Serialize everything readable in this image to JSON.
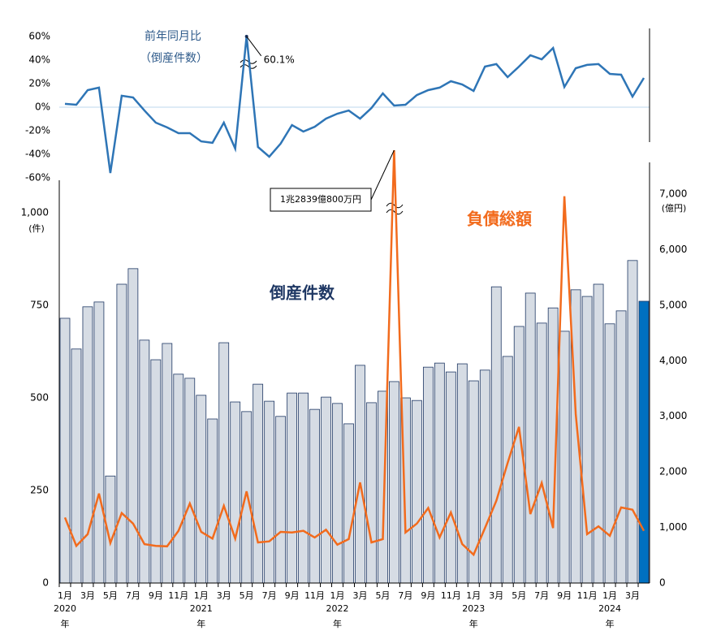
{
  "chart_data": [
    {
      "type": "line",
      "title": "前年同月比",
      "subtitle": "（倒産件数）",
      "color": "#2e75b6",
      "ylim": [
        -60,
        60
      ],
      "yticks": [
        {
          "value": -60,
          "label": "-60%"
        },
        {
          "value": -40,
          "label": "-40%"
        },
        {
          "value": -20,
          "label": "-20%"
        },
        {
          "value": 0,
          "label": "0%"
        },
        {
          "value": 20,
          "label": "20%"
        },
        {
          "value": 40,
          "label": "40%"
        },
        {
          "value": 60,
          "label": "60%"
        }
      ],
      "values": [
        2.8,
        2.1,
        14.5,
        16.6,
        -55.9,
        9.7,
        8.3,
        -2.8,
        -13.1,
        -17.2,
        -22.1,
        -22.1,
        -29.0,
        -30.3,
        -13.1,
        -35.2,
        60.1,
        -33.8,
        -42.1,
        -31.0,
        -15.2,
        -20.7,
        -16.6,
        -9.7,
        -5.5,
        -2.8,
        -9.7,
        -0.7,
        11.7,
        1.4,
        2.1,
        10.3,
        14.5,
        16.6,
        22.1,
        19.3,
        13.8,
        34.5,
        36.6,
        25.5,
        34.5,
        44.1,
        40.7,
        50.3,
        17.2,
        33.1,
        35.9,
        36.6,
        28.3,
        27.6,
        9.0,
        24.8
      ],
      "annotation": {
        "index": 16,
        "text": "60.1%"
      }
    },
    {
      "type": "bar-line",
      "categories": [
        "1月",
        null,
        "3月",
        null,
        "5月",
        null,
        "7月",
        null,
        "9月",
        null,
        "11月",
        null,
        "1月",
        null,
        "3月",
        null,
        "5月",
        null,
        "7月",
        null,
        "9月",
        null,
        "11月",
        null,
        "1月",
        null,
        "3月",
        null,
        "5月",
        null,
        "7月",
        null,
        "9月",
        null,
        "11月",
        null,
        "1月",
        null,
        "3月",
        null,
        "5月",
        null,
        "7月",
        null,
        "9月",
        null,
        "11月",
        null,
        "1月",
        null,
        "3月",
        null
      ],
      "years": [
        "2020",
        null,
        null,
        null,
        null,
        null,
        null,
        null,
        null,
        null,
        null,
        null,
        "2021",
        null,
        null,
        null,
        null,
        null,
        null,
        null,
        null,
        null,
        null,
        null,
        "2022",
        null,
        null,
        null,
        null,
        null,
        null,
        null,
        null,
        null,
        null,
        null,
        "2023",
        null,
        null,
        null,
        null,
        null,
        null,
        null,
        null,
        null,
        null,
        null,
        "2024",
        null,
        null,
        null
      ],
      "year_suffix": "年",
      "ylim": [
        0,
        1000
      ],
      "yticks": [
        0,
        250,
        500,
        750,
        {
          "value": 1000,
          "label": "1,000"
        }
      ],
      "y_unit": "(件)",
      "y2lim": [
        0,
        7000
      ],
      "y2ticks": [
        0,
        {
          "value": 1000,
          "label": "1,000"
        },
        {
          "value": 2000,
          "label": "2,000"
        },
        {
          "value": 3000,
          "label": "3,000"
        },
        {
          "value": 4000,
          "label": "4,000"
        },
        {
          "value": 5000,
          "label": "5,000"
        },
        {
          "value": 6000,
          "label": "6,000"
        },
        {
          "value": 7000,
          "label": "7,000"
        }
      ],
      "y2_unit": "(億円)",
      "series": [
        {
          "name": "倒産件数",
          "color": "#1f3864",
          "colors": [
            "#d6dce4",
            "#d6dce4",
            "#d6dce4",
            "#d6dce4",
            "#d6dce4",
            "#d6dce4",
            "#d6dce4",
            "#d6dce4",
            "#d6dce4",
            "#d6dce4",
            "#d6dce4",
            "#d6dce4",
            "#d6dce4",
            "#d6dce4",
            "#d6dce4",
            "#d6dce4",
            "#d6dce4",
            "#d6dce4",
            "#d6dce4",
            "#d6dce4",
            "#d6dce4",
            "#d6dce4",
            "#d6dce4",
            "#d6dce4",
            "#d6dce4",
            "#d6dce4",
            "#d6dce4",
            "#d6dce4",
            "#d6dce4",
            "#d6dce4",
            "#d6dce4",
            "#d6dce4",
            "#d6dce4",
            "#d6dce4",
            "#d6dce4",
            "#d6dce4",
            "#d6dce4",
            "#d6dce4",
            "#d6dce4",
            "#d6dce4",
            "#d6dce4",
            "#d6dce4",
            "#d6dce4",
            "#d6dce4",
            "#d6dce4",
            "#d6dce4",
            "#d6dce4",
            "#d6dce4",
            "#d6dce4",
            "#d6dce4",
            "#d6dce4",
            "#0070c0"
          ],
          "values": [
            715,
            632,
            746,
            759,
            289,
            807,
            849,
            656,
            603,
            647,
            564,
            553,
            507,
            443,
            649,
            489,
            463,
            537,
            491,
            450,
            513,
            513,
            469,
            502,
            485,
            430,
            588,
            487,
            518,
            544,
            500,
            493,
            583,
            594,
            570,
            592,
            546,
            575,
            800,
            612,
            693,
            783,
            702,
            743,
            680,
            792,
            774,
            807,
            700,
            735,
            871,
            761
          ]
        },
        {
          "name": "負債総額",
          "color": "#f26b1d",
          "axis": "y2",
          "values": [
            1180,
            670,
            880,
            1610,
            720,
            1260,
            1070,
            700,
            670,
            660,
            940,
            1430,
            920,
            800,
            1390,
            800,
            1650,
            730,
            750,
            920,
            910,
            940,
            820,
            960,
            690,
            790,
            1810,
            730,
            790,
            12839.08,
            910,
            1070,
            1350,
            820,
            1270,
            700,
            510,
            990,
            1480,
            2160,
            2810,
            1240,
            1800,
            990,
            6960,
            3040,
            880,
            1020,
            850,
            1360,
            1320,
            940
          ]
        }
      ],
      "annotation": {
        "index": 29,
        "text": "1兆2839億800万円"
      }
    }
  ]
}
